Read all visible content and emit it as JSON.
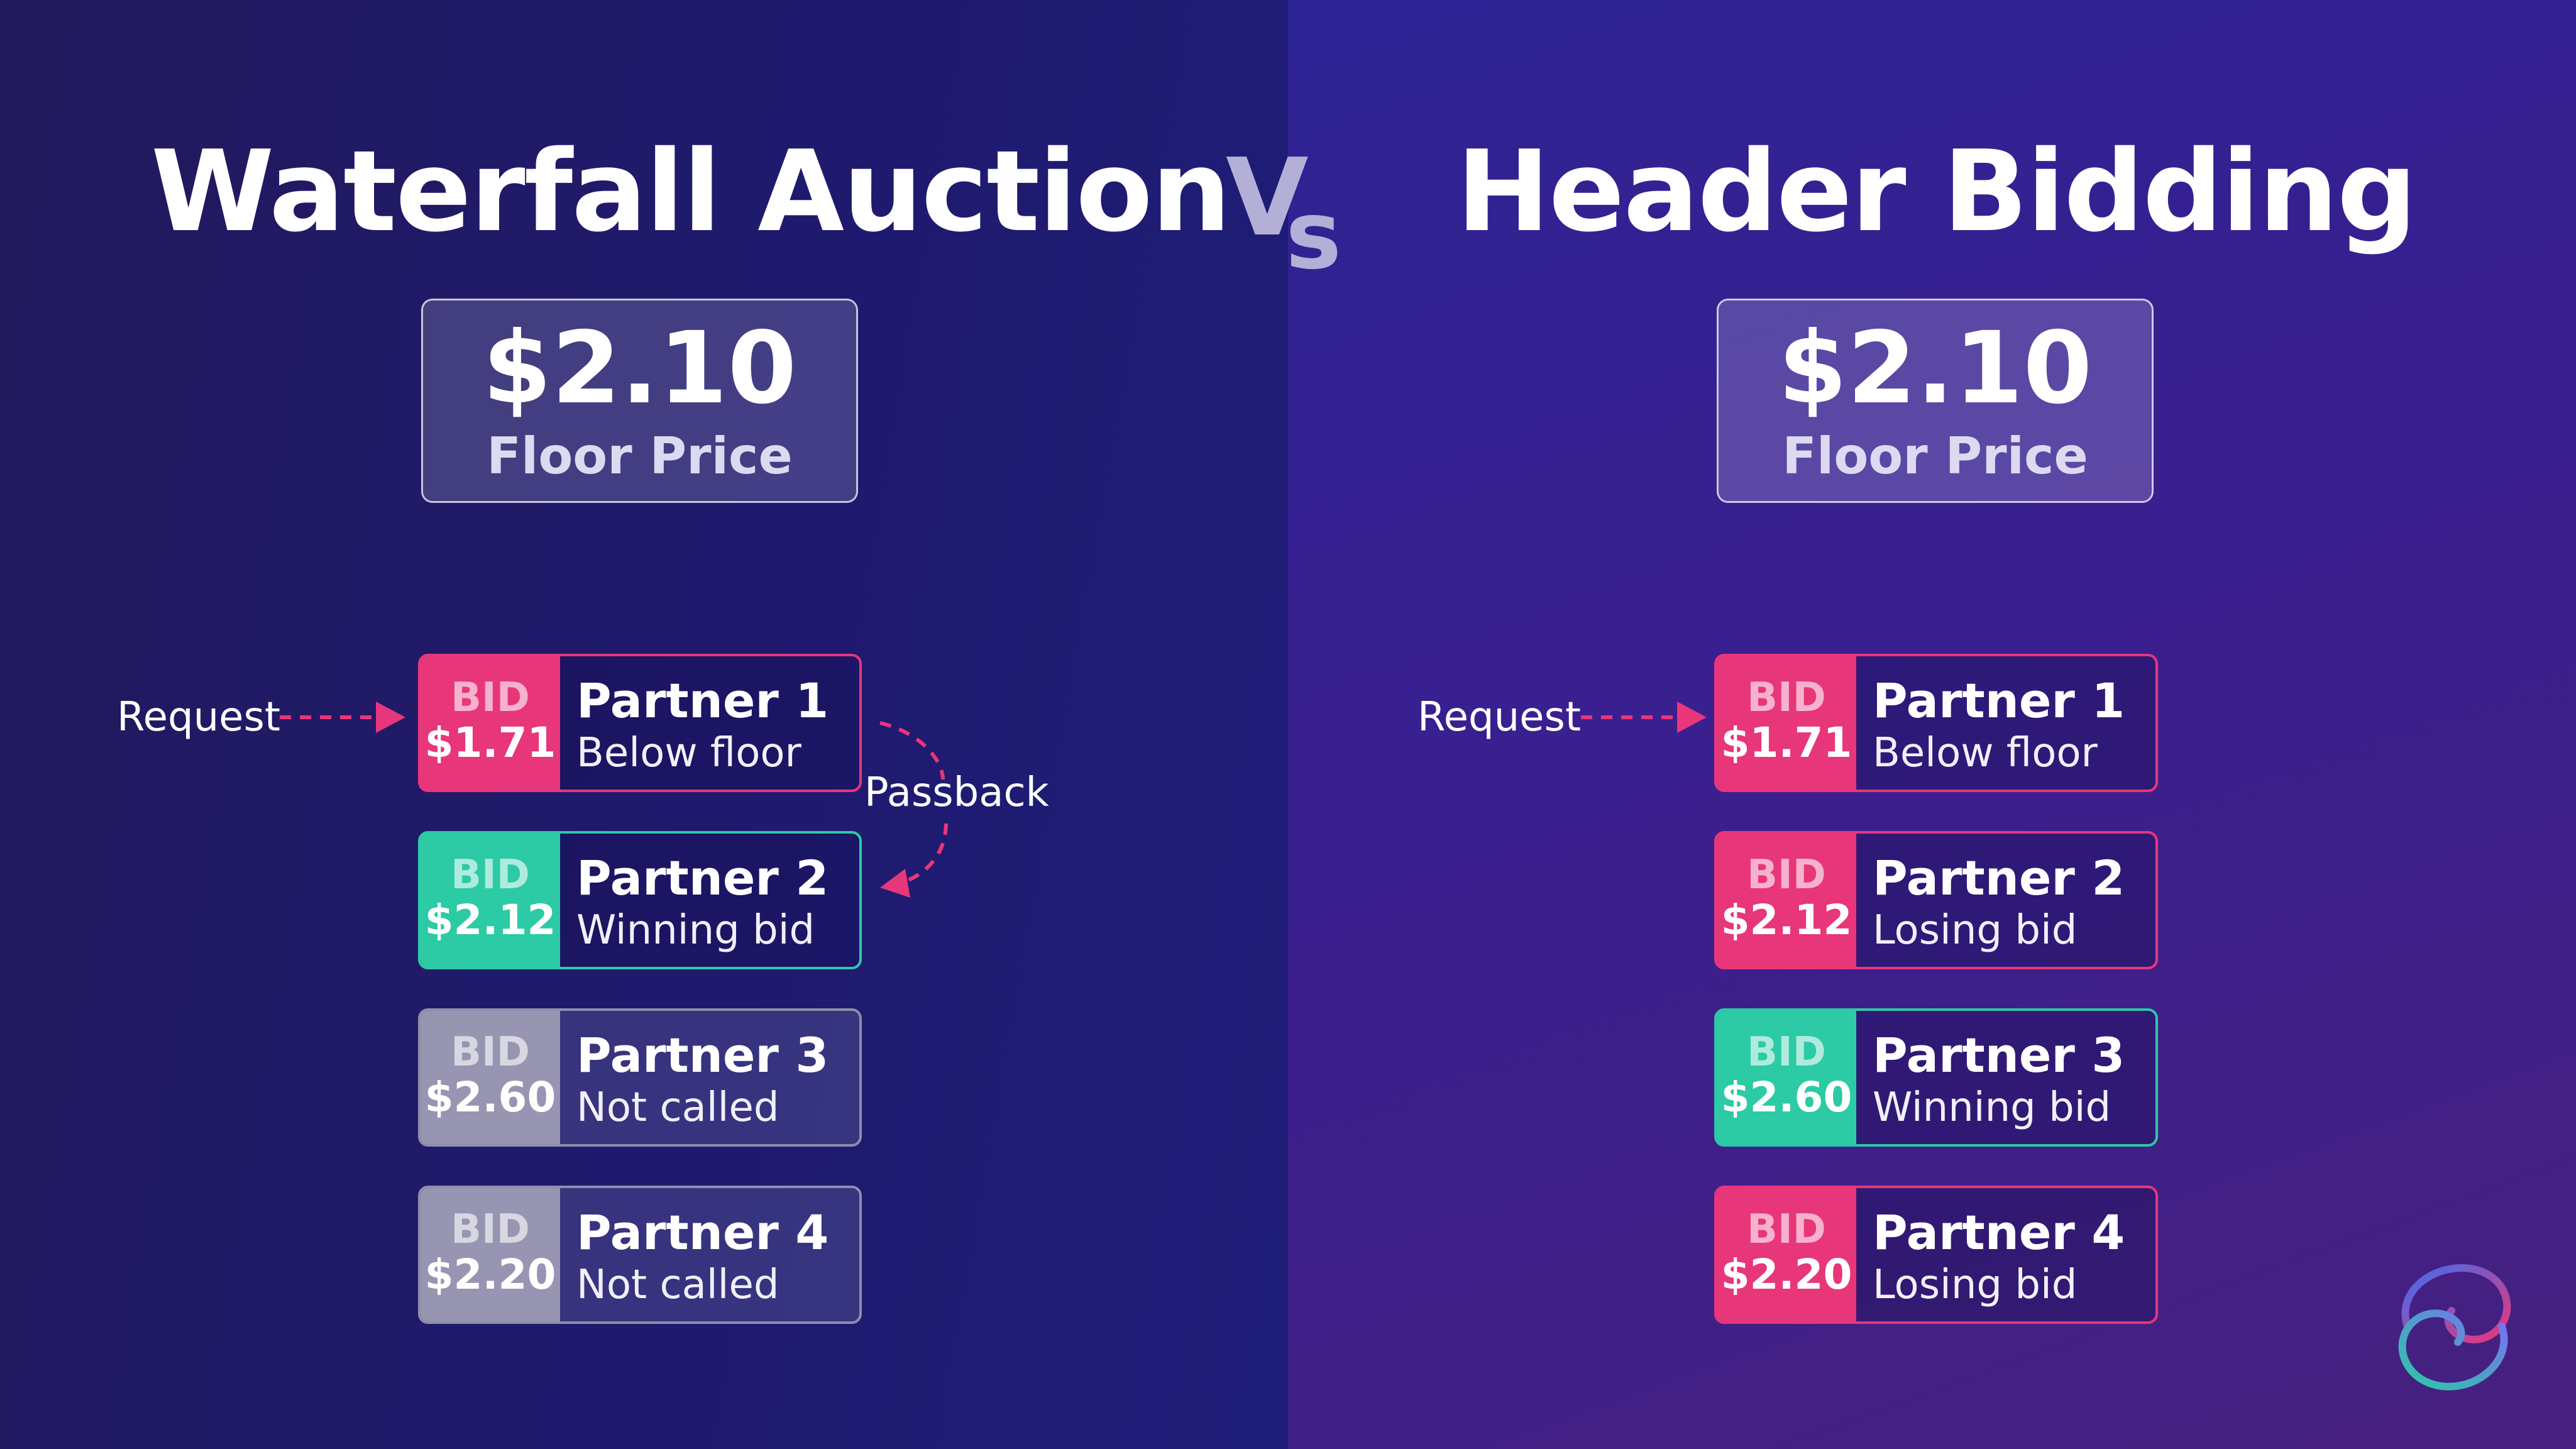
{
  "header": {
    "left_title": "Waterfall Auction",
    "vs_v": "V",
    "vs_s": "s",
    "right_title": "Header Bidding"
  },
  "waterfall": {
    "floor_price": "$2.10",
    "floor_label": "Floor Price",
    "request_label": "Request",
    "passback_label": "Passback",
    "partners": [
      {
        "bid_label": "BID",
        "amount": "$1.71",
        "name": "Partner 1",
        "status": "Below floor",
        "state": "below"
      },
      {
        "bid_label": "BID",
        "amount": "$2.12",
        "name": "Partner 2",
        "status": "Winning bid",
        "state": "winning"
      },
      {
        "bid_label": "BID",
        "amount": "$2.60",
        "name": "Partner 3",
        "status": "Not called",
        "state": "not-called"
      },
      {
        "bid_label": "BID",
        "amount": "$2.20",
        "name": "Partner 4",
        "status": "Not called",
        "state": "not-called"
      }
    ]
  },
  "header_bidding": {
    "floor_price": "$2.10",
    "floor_label": "Floor Price",
    "request_label": "Request",
    "partners": [
      {
        "bid_label": "BID",
        "amount": "$1.71",
        "name": "Partner 1",
        "status": "Below floor",
        "state": "below"
      },
      {
        "bid_label": "BID",
        "amount": "$2.12",
        "name": "Partner 2",
        "status": "Losing bid",
        "state": "losing"
      },
      {
        "bid_label": "BID",
        "amount": "$2.60",
        "name": "Partner 3",
        "status": "Winning bid",
        "state": "winning"
      },
      {
        "bid_label": "BID",
        "amount": "$2.20",
        "name": "Partner 4",
        "status": "Losing bid",
        "state": "losing"
      }
    ]
  },
  "colors": {
    "pink_accent": "#e8367a",
    "green_winning": "#2ccaa5",
    "grey_not_called": "#9795b1",
    "left_background": "#1f1a6e",
    "right_background": "#3a1f8f"
  },
  "icons": {
    "logo": "interlocking-rings-logo"
  }
}
